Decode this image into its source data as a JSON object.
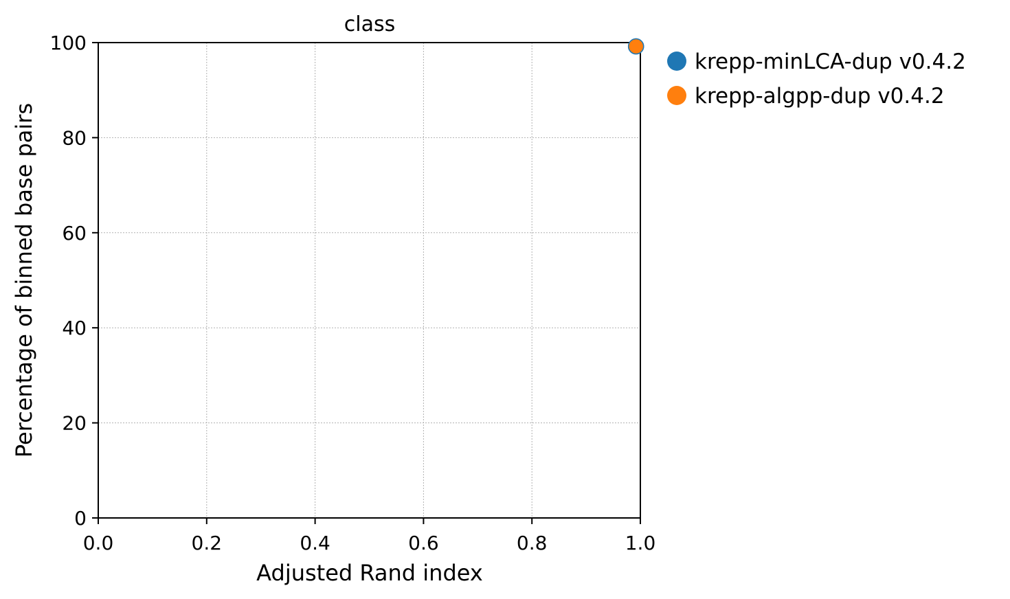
{
  "chart_data": {
    "type": "scatter",
    "title": "class",
    "xlabel": "Adjusted Rand index",
    "ylabel": "Percentage of binned base pairs",
    "xlim": [
      0.0,
      1.0
    ],
    "ylim": [
      0,
      100
    ],
    "x_ticks": [
      "0.0",
      "0.2",
      "0.4",
      "0.6",
      "0.8",
      "1.0"
    ],
    "y_ticks": [
      "0",
      "20",
      "40",
      "60",
      "80",
      "100"
    ],
    "grid": true,
    "legend_position": "outside-right",
    "series": [
      {
        "name": "krepp-minLCA-dup v0.4.2",
        "color": "#1f77b4",
        "points": [
          {
            "x": 0.992,
            "y": 99.2
          }
        ]
      },
      {
        "name": "krepp-algpp-dup v0.4.2",
        "color": "#ff7f0e",
        "points": [
          {
            "x": 0.992,
            "y": 99.2
          }
        ]
      }
    ]
  }
}
